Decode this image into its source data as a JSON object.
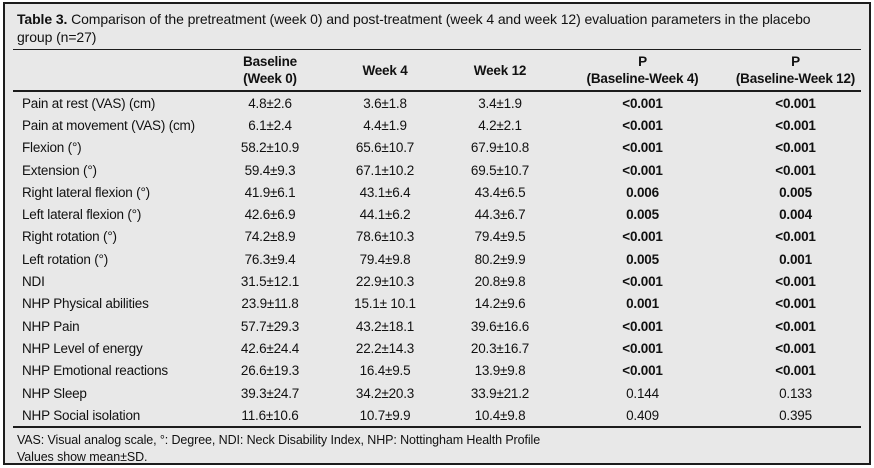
{
  "caption": {
    "label": "Table 3.",
    "text": "Comparison of the pretreatment (week 0) and post-treatment (week 4 and week 12) evaluation parameters in the placebo group (n=27)"
  },
  "colors": {
    "background": "#e8e8e8",
    "border": "#1c1c1c",
    "text": "#111111"
  },
  "table": {
    "columns": [
      {
        "line1": "",
        "line2": ""
      },
      {
        "line1": "Baseline",
        "line2": "(Week 0)"
      },
      {
        "line1": "Week 4",
        "line2": ""
      },
      {
        "line1": "Week 12",
        "line2": ""
      },
      {
        "line1": "P",
        "line2": "(Baseline-Week 4)"
      },
      {
        "line1": "P",
        "line2": "(Baseline-Week 12)"
      }
    ],
    "rows": [
      {
        "label": "Pain at rest (VAS) (cm)",
        "baseline": "4.8±2.6",
        "week4": "3.6±1.8",
        "week12": "3.4±1.9",
        "p4": "<0.001",
        "p12": "<0.001",
        "p4_bold": true,
        "p12_bold": true
      },
      {
        "label": "Pain at movement (VAS) (cm)",
        "baseline": "6.1±2.4",
        "week4": "4.4±1.9",
        "week12": "4.2±2.1",
        "p4": "<0.001",
        "p12": "<0.001",
        "p4_bold": true,
        "p12_bold": true
      },
      {
        "label": "Flexion (°)",
        "baseline": "58.2±10.9",
        "week4": "65.6±10.7",
        "week12": "67.9±10.8",
        "p4": "<0.001",
        "p12": "<0.001",
        "p4_bold": true,
        "p12_bold": true
      },
      {
        "label": "Extension (°)",
        "baseline": "59.4±9.3",
        "week4": "67.1±10.2",
        "week12": "69.5±10.7",
        "p4": "<0.001",
        "p12": "<0.001",
        "p4_bold": true,
        "p12_bold": true
      },
      {
        "label": "Right lateral flexion (°)",
        "baseline": "41.9±6.1",
        "week4": "43.1±6.4",
        "week12": "43.4±6.5",
        "p4": "0.006",
        "p12": "0.005",
        "p4_bold": true,
        "p12_bold": true
      },
      {
        "label": "Left lateral flexion (°)",
        "baseline": "42.6±6.9",
        "week4": "44.1±6.2",
        "week12": "44.3±6.7",
        "p4": "0.005",
        "p12": "0.004",
        "p4_bold": true,
        "p12_bold": true
      },
      {
        "label": "Right rotation (°)",
        "baseline": "74.2±8.9",
        "week4": "78.6±10.3",
        "week12": "79.4±9.5",
        "p4": "<0.001",
        "p12": "<0.001",
        "p4_bold": true,
        "p12_bold": true
      },
      {
        "label": "Left rotation (°)",
        "baseline": "76.3±9.4",
        "week4": "79.4±9.8",
        "week12": "80.2±9.9",
        "p4": "0.005",
        "p12": "0.001",
        "p4_bold": true,
        "p12_bold": true
      },
      {
        "label": "NDI",
        "baseline": "31.5±12.1",
        "week4": "22.9±10.3",
        "week12": "20.8±9.8",
        "p4": "<0.001",
        "p12": "<0.001",
        "p4_bold": true,
        "p12_bold": true
      },
      {
        "label": "NHP Physical abilities",
        "baseline": "23.9±11.8",
        "week4": "15.1± 10.1",
        "week12": "14.2±9.6",
        "p4": "0.001",
        "p12": "<0.001",
        "p4_bold": true,
        "p12_bold": true
      },
      {
        "label": "NHP Pain",
        "baseline": "57.7±29.3",
        "week4": "43.2±18.1",
        "week12": "39.6±16.6",
        "p4": "<0.001",
        "p12": "<0.001",
        "p4_bold": true,
        "p12_bold": true
      },
      {
        "label": "NHP Level of energy",
        "baseline": "42.6±24.4",
        "week4": "22.2±14.3",
        "week12": "20.3±16.7",
        "p4": "<0.001",
        "p12": "<0.001",
        "p4_bold": true,
        "p12_bold": true
      },
      {
        "label": "NHP Emotional reactions",
        "baseline": "26.6±19.3",
        "week4": "16.4±9.5",
        "week12": "13.9±9.8",
        "p4": "<0.001",
        "p12": "<0.001",
        "p4_bold": true,
        "p12_bold": true
      },
      {
        "label": "NHP Sleep",
        "baseline": "39.3±24.7",
        "week4": "34.2±20.3",
        "week12": "33.9±21.2",
        "p4": "0.144",
        "p12": "0.133",
        "p4_bold": false,
        "p12_bold": false
      },
      {
        "label": "NHP Social isolation",
        "baseline": "11.6±10.6",
        "week4": "10.7±9.9",
        "week12": "10.4±9.8",
        "p4": "0.409",
        "p12": "0.395",
        "p4_bold": false,
        "p12_bold": false
      }
    ]
  },
  "footnotes": [
    "VAS: Visual analog scale, °: Degree, NDI: Neck Disability Index, NHP: Nottingham Health Profile",
    "Values show mean±SD."
  ]
}
